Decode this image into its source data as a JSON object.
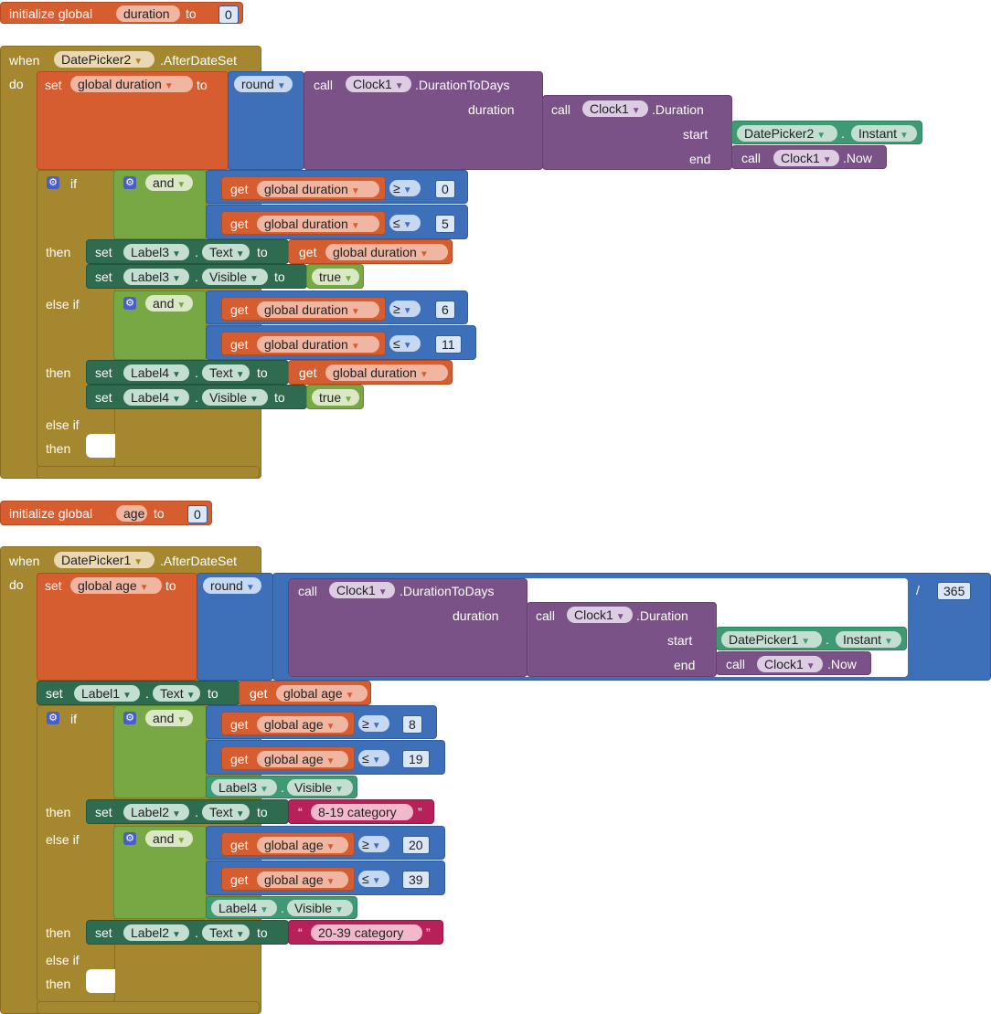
{
  "init1": {
    "label": "initialize global",
    "name": "duration",
    "to": "to",
    "value": "0"
  },
  "event1": {
    "when": "when",
    "do": "do",
    "component": "DatePicker2",
    "event": ".AfterDateSet"
  },
  "set_dur": {
    "set": "set",
    "var": "global duration",
    "to": "to",
    "round": "round",
    "call": "call",
    "clock": "Clock1",
    "method": ".DurationToDays",
    "duration_lbl": "duration",
    "inner_method": ".Duration",
    "start": "start",
    "end": "end",
    "picker": "DatePicker2",
    "instant": "Instant",
    "now": ".Now"
  },
  "if1": {
    "if": "if",
    "and": "and",
    "get": "get",
    "var": "global duration",
    "op_ge": "≥",
    "op_le": "≤",
    "v0": "0",
    "v5": "5",
    "v6": "6",
    "v11": "11",
    "then": "then",
    "else_if": "else if"
  },
  "set_label3": {
    "set": "set",
    "label": "Label3",
    "prop_text": "Text",
    "to": "to",
    "get": "get",
    "var": "global duration",
    "prop_visible": "Visible",
    "true": "true"
  },
  "set_label4": {
    "set": "set",
    "label": "Label4",
    "prop_text": "Text",
    "to": "to",
    "get": "get",
    "var": "global duration",
    "prop_visible": "Visible",
    "true": "true"
  },
  "init2": {
    "label": "initialize global",
    "name": "age",
    "to": "to",
    "value": "0"
  },
  "event2": {
    "when": "when",
    "do": "do",
    "component": "DatePicker1",
    "event": ".AfterDateSet"
  },
  "set_age": {
    "set": "set",
    "var": "global age",
    "to": "to",
    "round": "round",
    "call": "call",
    "clock": "Clock1",
    "method": ".DurationToDays",
    "duration_lbl": "duration",
    "inner_method": ".Duration",
    "start": "start",
    "end": "end",
    "picker": "DatePicker1",
    "instant": "Instant",
    "now": ".Now",
    "divide": "/",
    "divisor": "365"
  },
  "set_label1": {
    "set": "set",
    "label": "Label1",
    "prop": "Text",
    "to": "to",
    "get": "get",
    "var": "global age"
  },
  "if2": {
    "if": "if",
    "and": "and",
    "get": "get",
    "var": "global age",
    "op_ge": "≥",
    "op_le": "≤",
    "v8": "8",
    "v19": "19",
    "v20": "20",
    "v39": "39",
    "label3": "Label3",
    "label4": "Label4",
    "visible": "Visible",
    "then": "then",
    "else_if": "else if"
  },
  "set_label2": {
    "set": "set",
    "label": "Label2",
    "prop": "Text",
    "to": "to",
    "cat1": "8-19 category",
    "cat2": "20-39 category",
    "quote_open": "“",
    "quote_close": "”"
  }
}
